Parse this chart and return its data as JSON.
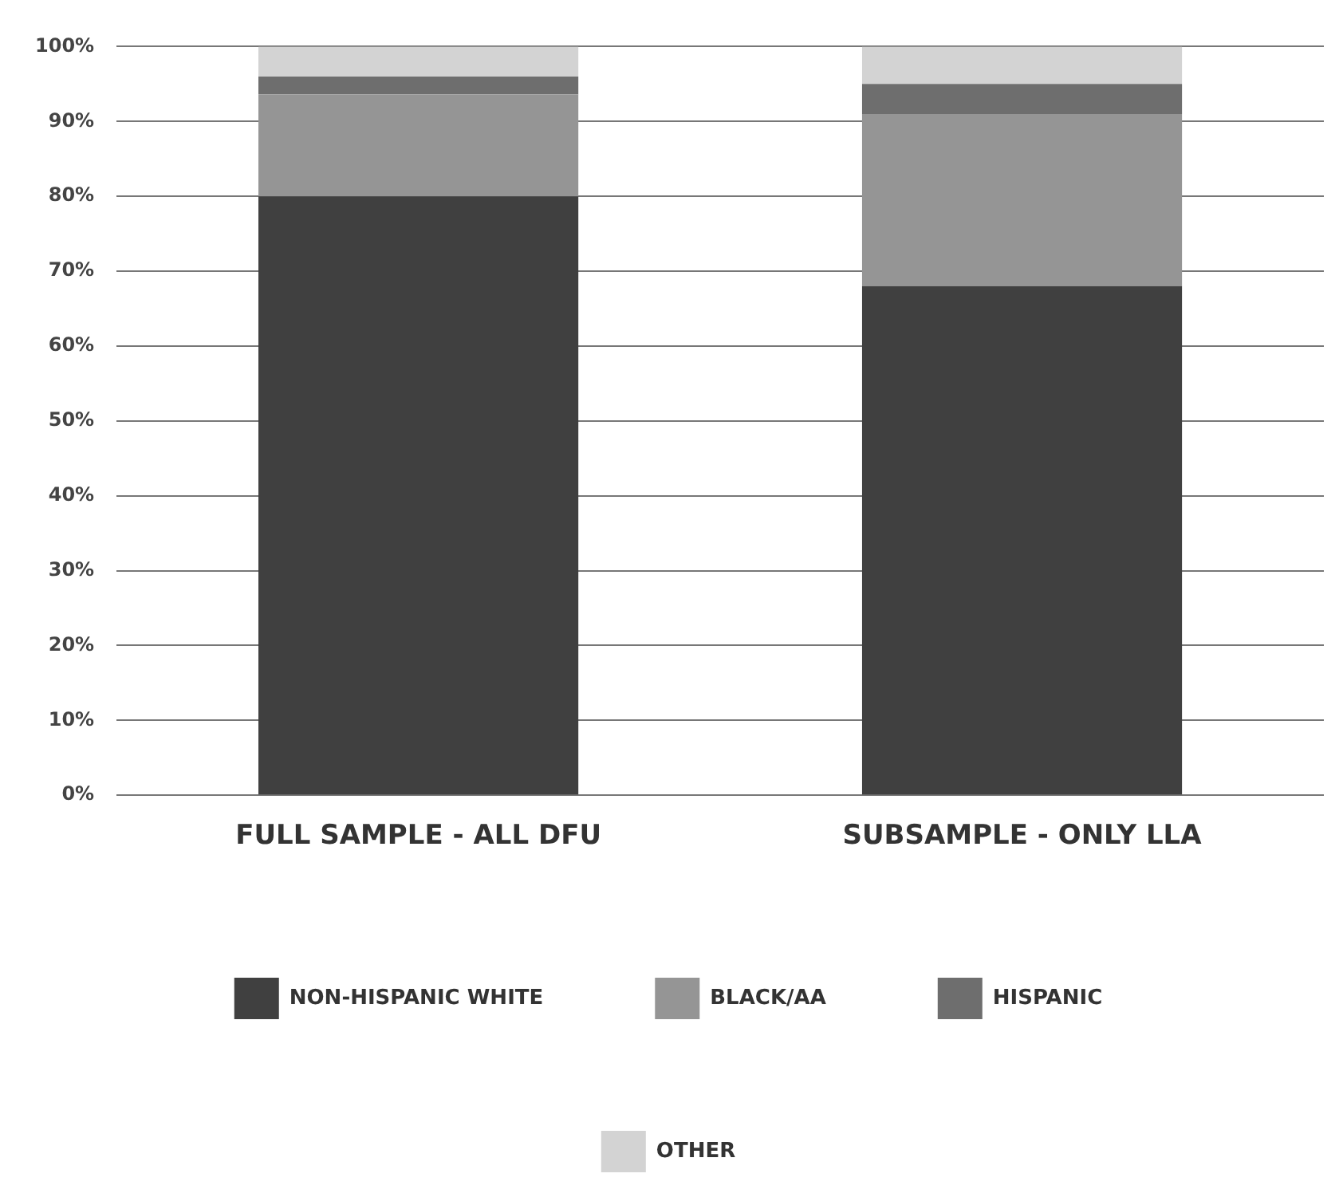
{
  "chart_data": {
    "type": "bar",
    "stacked": true,
    "categories": [
      "FULL SAMPLE - ALL DFU",
      "SUBSAMPLE - ONLY LLA"
    ],
    "series": [
      {
        "name": "NON-HISPANIC WHITE",
        "color": "#404040",
        "values": [
          80,
          68
        ]
      },
      {
        "name": "BLACK/AA",
        "color": "#959595",
        "values": [
          13.6,
          23
        ]
      },
      {
        "name": "HISPANIC",
        "color": "#6e6e6e",
        "values": [
          2.4,
          4
        ]
      },
      {
        "name": "OTHER",
        "color": "#d3d3d3",
        "values": [
          4,
          5
        ]
      }
    ],
    "ylim": [
      0,
      100
    ],
    "yticks": [
      {
        "value": 0,
        "label": "0%"
      },
      {
        "value": 10,
        "label": "10%"
      },
      {
        "value": 20,
        "label": "20%"
      },
      {
        "value": 30,
        "label": "30%"
      },
      {
        "value": 40,
        "label": "40%"
      },
      {
        "value": 50,
        "label": "50%"
      },
      {
        "value": 60,
        "label": "60%"
      },
      {
        "value": 70,
        "label": "70%"
      },
      {
        "value": 80,
        "label": "80%"
      },
      {
        "value": 90,
        "label": "90%"
      },
      {
        "value": 100,
        "label": "100%"
      }
    ],
    "grid": "y",
    "legend": "bottom"
  }
}
